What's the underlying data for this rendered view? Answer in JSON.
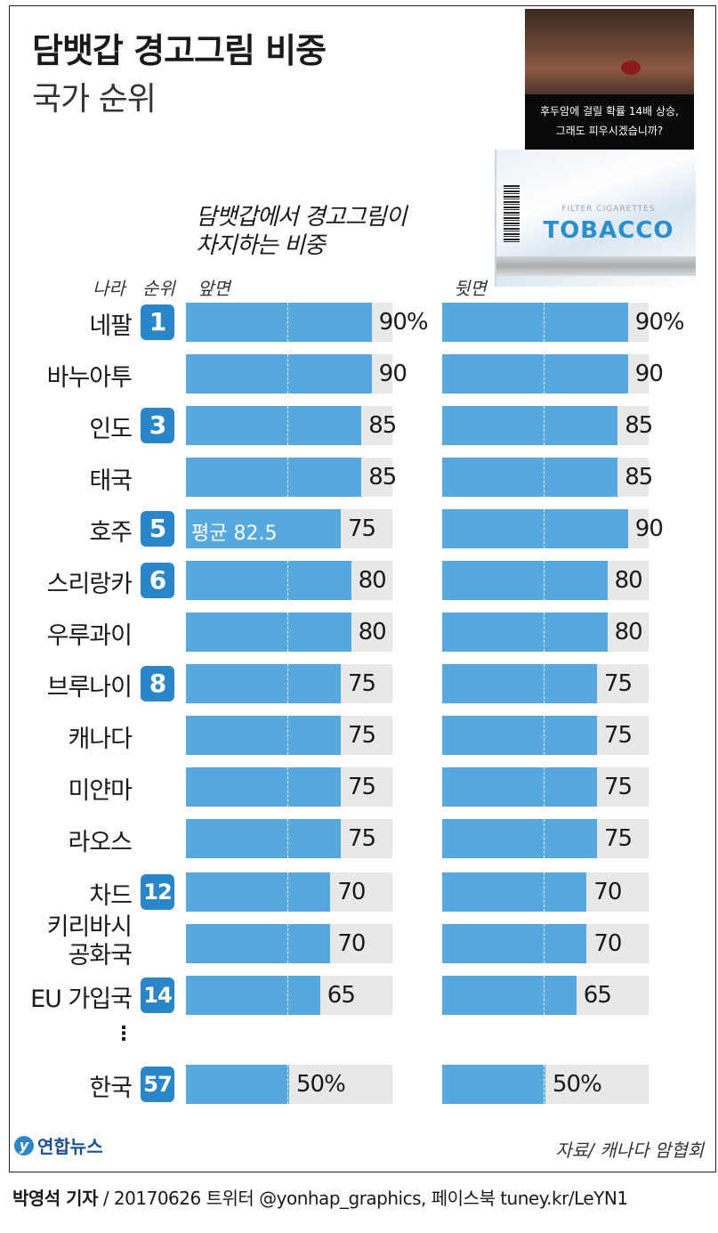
{
  "title": "담뱃갑 경고그림 비중",
  "subtitle": "국가 순위",
  "pack": {
    "warning_line1": "후두암에 걸릴 확률 14배 상승,",
    "warning_line2": "그래도 피우시겠습니까?",
    "filter": "FILTER CIGARETTES",
    "brand": "TOBACCO"
  },
  "caption_line1": "담뱃갑에서 경고그림이",
  "caption_line2": "차지하는 비중",
  "headers": {
    "country": "나라",
    "rank": "순위",
    "front": "앞면",
    "back": "뒷면"
  },
  "average_label": "평균 82.5",
  "ellipsis": "⋮",
  "chart_data": {
    "type": "bar",
    "orientation": "horizontal",
    "xlim": [
      0,
      100
    ],
    "average": 82.5,
    "series": [
      {
        "name": "앞면",
        "values": [
          90,
          90,
          85,
          85,
          75,
          80,
          80,
          75,
          75,
          75,
          75,
          70,
          70,
          65,
          50
        ]
      },
      {
        "name": "뒷면",
        "values": [
          90,
          90,
          85,
          85,
          90,
          80,
          80,
          75,
          75,
          75,
          75,
          70,
          70,
          65,
          50
        ]
      }
    ],
    "rows": [
      {
        "country": "네팔",
        "rank": "1",
        "front": "90%",
        "back": "90%"
      },
      {
        "country": "바누아투",
        "rank": "",
        "front": "90",
        "back": "90"
      },
      {
        "country": "인도",
        "rank": "3",
        "front": "85",
        "back": "85"
      },
      {
        "country": "태국",
        "rank": "",
        "front": "85",
        "back": "85"
      },
      {
        "country": "호주",
        "rank": "5",
        "front": "75",
        "back": "90"
      },
      {
        "country": "스리랑카",
        "rank": "6",
        "front": "80",
        "back": "80"
      },
      {
        "country": "우루과이",
        "rank": "",
        "front": "80",
        "back": "80"
      },
      {
        "country": "브루나이",
        "rank": "8",
        "front": "75",
        "back": "75"
      },
      {
        "country": "캐나다",
        "rank": "",
        "front": "75",
        "back": "75"
      },
      {
        "country": "미얀마",
        "rank": "",
        "front": "75",
        "back": "75"
      },
      {
        "country": "라오스",
        "rank": "",
        "front": "75",
        "back": "75"
      },
      {
        "country": "차드",
        "rank": "12",
        "front": "70",
        "back": "70"
      },
      {
        "country": "키리바시\n공화국",
        "rank": "",
        "front": "70",
        "back": "70"
      },
      {
        "country": "EU 가입국",
        "rank": "14",
        "front": "65",
        "back": "65"
      },
      {
        "country": "한국",
        "rank": "57",
        "front": "50%",
        "back": "50%"
      }
    ]
  },
  "logo_text": "연합뉴스",
  "source": "자료/ 캐나다 암협회",
  "footer": {
    "reporter": "박영석 기자",
    "rest": " / 20170626   트위터 @yonhap_graphics, 페이스북 tuney.kr/LeYN1"
  }
}
